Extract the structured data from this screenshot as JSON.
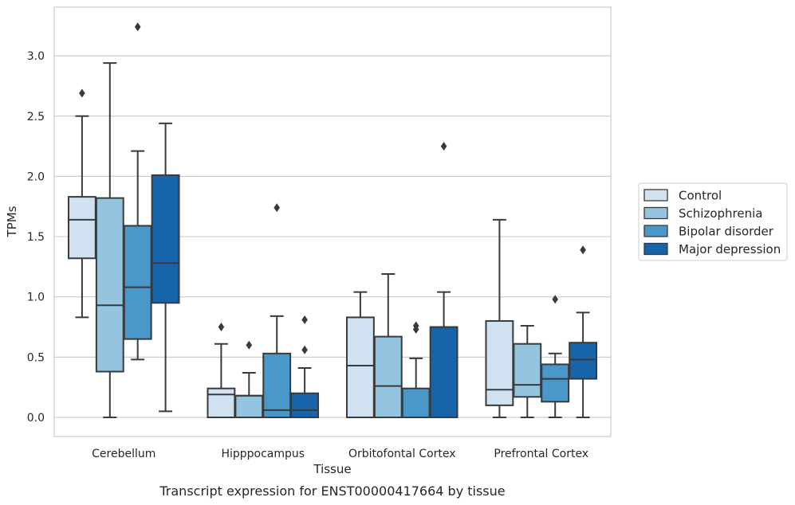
{
  "chart_data": {
    "type": "box",
    "xlabel": "Tissue",
    "ylabel": "TPMs",
    "caption": "Transcript expression for ENST00000417664 by tissue",
    "ylim": [
      -0.16,
      3.42
    ],
    "yticks": [
      0.0,
      0.5,
      1.0,
      1.5,
      2.0,
      2.5,
      3.0
    ],
    "ytick_labels": [
      "0.0",
      "0.5",
      "1.0",
      "1.5",
      "2.0",
      "2.5",
      "3.0"
    ],
    "grid": "horizontal",
    "legend_position": "right",
    "categories": [
      "Cerebellum",
      "Hipppocampus",
      "Orbitofontal Cortex",
      "Prefrontal Cortex"
    ],
    "series": [
      {
        "name": "Control",
        "color": "#d0e1f2",
        "boxes": [
          {
            "whisker_low": 0.83,
            "q1": 1.32,
            "median": 1.64,
            "q3": 1.83,
            "whisker_high": 2.5,
            "outliers": [
              2.69
            ]
          },
          {
            "whisker_low": 0.0,
            "q1": 0.0,
            "median": 0.19,
            "q3": 0.24,
            "whisker_high": 0.61,
            "outliers": [
              0.75
            ]
          },
          {
            "whisker_low": 0.0,
            "q1": 0.0,
            "median": 0.43,
            "q3": 0.83,
            "whisker_high": 1.04,
            "outliers": []
          },
          {
            "whisker_low": 0.0,
            "q1": 0.1,
            "median": 0.23,
            "q3": 0.8,
            "whisker_high": 1.64,
            "outliers": []
          }
        ]
      },
      {
        "name": "Schizophrenia",
        "color": "#94c4df",
        "boxes": [
          {
            "whisker_low": 0.0,
            "q1": 0.38,
            "median": 0.93,
            "q3": 1.82,
            "whisker_high": 2.94,
            "outliers": []
          },
          {
            "whisker_low": 0.0,
            "q1": 0.0,
            "median": 0.18,
            "q3": 0.18,
            "whisker_high": 0.37,
            "outliers": [
              0.6
            ]
          },
          {
            "whisker_low": 0.0,
            "q1": 0.0,
            "median": 0.26,
            "q3": 0.67,
            "whisker_high": 1.19,
            "outliers": []
          },
          {
            "whisker_low": 0.0,
            "q1": 0.17,
            "median": 0.27,
            "q3": 0.61,
            "whisker_high": 0.76,
            "outliers": []
          }
        ]
      },
      {
        "name": "Bipolar disorder",
        "color": "#4a98c9",
        "boxes": [
          {
            "whisker_low": 0.48,
            "q1": 0.65,
            "median": 1.08,
            "q3": 1.59,
            "whisker_high": 2.21,
            "outliers": [
              3.24
            ]
          },
          {
            "whisker_low": 0.0,
            "q1": 0.0,
            "median": 0.06,
            "q3": 0.53,
            "whisker_high": 0.84,
            "outliers": [
              1.74
            ]
          },
          {
            "whisker_low": 0.0,
            "q1": 0.0,
            "median": 0.0,
            "q3": 0.24,
            "whisker_high": 0.49,
            "outliers": [
              0.73,
              0.76
            ]
          },
          {
            "whisker_low": 0.0,
            "q1": 0.13,
            "median": 0.32,
            "q3": 0.44,
            "whisker_high": 0.53,
            "outliers": [
              0.98
            ]
          }
        ]
      },
      {
        "name": "Major depression",
        "color": "#1764ab",
        "boxes": [
          {
            "whisker_low": 0.05,
            "q1": 0.95,
            "median": 1.28,
            "q3": 2.01,
            "whisker_high": 2.44,
            "outliers": []
          },
          {
            "whisker_low": 0.0,
            "q1": 0.0,
            "median": 0.06,
            "q3": 0.2,
            "whisker_high": 0.41,
            "outliers": [
              0.56,
              0.81
            ]
          },
          {
            "whisker_low": 0.0,
            "q1": 0.0,
            "median": 0.0,
            "q3": 0.75,
            "whisker_high": 1.04,
            "outliers": [
              2.25
            ]
          },
          {
            "whisker_low": 0.0,
            "q1": 0.32,
            "median": 0.48,
            "q3": 0.62,
            "whisker_high": 0.87,
            "outliers": [
              1.39
            ]
          }
        ]
      }
    ]
  }
}
